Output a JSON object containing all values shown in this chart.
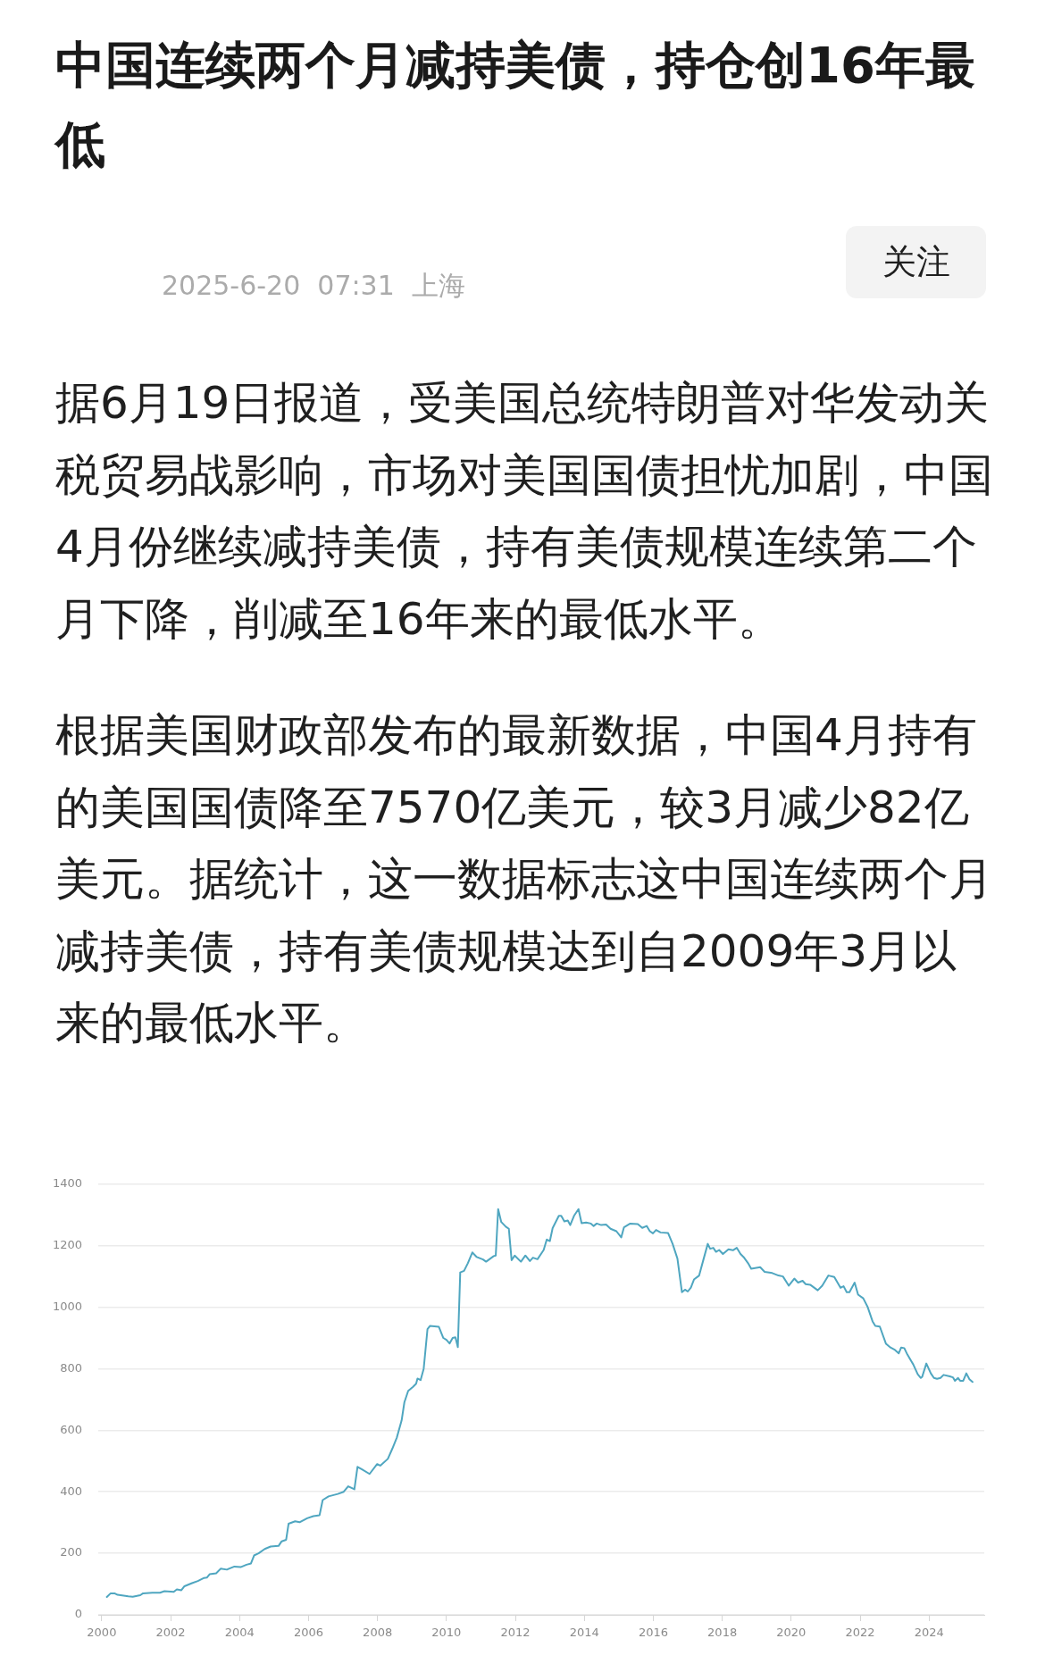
{
  "chart_data": {
    "type": "line",
    "title": "中国连续两个月减持美债，持仓创16年最低",
    "subtitle": "2025-6-20  07:31  上海",
    "annotations": [
      "关注",
      "据6月19日报道，受美国总统特朗普对华发动关税贸易战影响，市场对美国国债担忧加剧，中国4月份继续减持美债，持有美债规模连续第二个月下降，削减至16年来的最低水平。",
      "根据美国财政部发布的最新数据，中国4月持有的美国国债降至7570亿美元，较3月减少82亿美元。据统计，这一数据标志这中国连续两个月减持美债，持有美债规模达到自2009年3月以来的最低水平。"
    ],
    "x": [
      2000.15,
      2000.26,
      2000.37,
      2000.46,
      2000.77,
      2000.9,
      2001.12,
      2001.2,
      2001.47,
      2001.69,
      2001.82,
      2002.09,
      2002.18,
      2002.31,
      2002.4,
      2002.62,
      2002.79,
      2002.97,
      2003.05,
      2003.13,
      2003.32,
      2003.45,
      2003.63,
      2003.85,
      2004.03,
      2004.2,
      2004.33,
      2004.42,
      2004.55,
      2004.73,
      2004.9,
      2005.13,
      2005.22,
      2005.35,
      2005.42,
      2005.61,
      2005.74,
      2005.96,
      2006.14,
      2006.32,
      2006.41,
      2006.58,
      2006.85,
      2007.02,
      2007.15,
      2007.33,
      2007.42,
      2007.55,
      2007.77,
      2007.99,
      2008.08,
      2008.3,
      2008.43,
      2008.56,
      2008.7,
      2008.78,
      2008.89,
      2009.03,
      2009.12,
      2009.16,
      2009.25,
      2009.34,
      2009.45,
      2009.52,
      2009.78,
      2009.91,
      2010.0,
      2010.09,
      2010.18,
      2010.26,
      2010.33,
      2010.4,
      2010.51,
      2010.62,
      2010.75,
      2010.88,
      2011.06,
      2011.15,
      2011.37,
      2011.43,
      2011.5,
      2011.59,
      2011.72,
      2011.81,
      2011.89,
      2011.98,
      2012.16,
      2012.29,
      2012.42,
      2012.51,
      2012.64,
      2012.82,
      2012.91,
      2013.0,
      2013.08,
      2013.26,
      2013.33,
      2013.42,
      2013.52,
      2013.59,
      2013.7,
      2013.83,
      2013.92,
      2014.05,
      2014.19,
      2014.27,
      2014.36,
      2014.49,
      2014.63,
      2014.76,
      2014.93,
      2015.07,
      2015.15,
      2015.33,
      2015.55,
      2015.68,
      2015.81,
      2015.9,
      2015.99,
      2016.08,
      2016.21,
      2016.43,
      2016.56,
      2016.7,
      2016.83,
      2016.92,
      2017.0,
      2017.09,
      2017.18,
      2017.33,
      2017.45,
      2017.58,
      2017.65,
      2017.74,
      2017.82,
      2017.91,
      2018.02,
      2018.18,
      2018.31,
      2018.42,
      2018.53,
      2018.62,
      2018.75,
      2018.84,
      2019.1,
      2019.23,
      2019.45,
      2019.63,
      2019.76,
      2019.93,
      2020.09,
      2020.2,
      2020.33,
      2020.42,
      2020.55,
      2020.77,
      2020.9,
      2021.08,
      2021.25,
      2021.43,
      2021.52,
      2021.61,
      2021.69,
      2021.84,
      2021.94,
      2022.09,
      2022.22,
      2022.36,
      2022.44,
      2022.57,
      2022.75,
      2022.88,
      2023.01,
      2023.12,
      2023.19,
      2023.28,
      2023.37,
      2023.54,
      2023.67,
      2023.76,
      2023.8,
      2023.92,
      2024.05,
      2024.14,
      2024.23,
      2024.33,
      2024.42,
      2024.6,
      2024.69,
      2024.75,
      2024.84,
      2024.9,
      2024.99,
      2025.08,
      2025.17,
      2025.26
    ],
    "series": [
      {
        "color": "#4fa6c0",
        "values": [
          58,
          70,
          70,
          65,
          60,
          59,
          64,
          70,
          72,
          72,
          77,
          75,
          83,
          80,
          93,
          103,
          110,
          120,
          121,
          132,
          135,
          150,
          147,
          157,
          155,
          163,
          167,
          193,
          200,
          214,
          222,
          224,
          239,
          244,
          296,
          304,
          301,
          314,
          321,
          324,
          373,
          385,
          393,
          400,
          418,
          408,
          481,
          473,
          458,
          490,
          485,
          507,
          540,
          576,
          632,
          691,
          728,
          741,
          751,
          768,
          763,
          800,
          929,
          939,
          936,
          900,
          894,
          882,
          900,
          902,
          870,
          1113,
          1118,
          1143,
          1178,
          1163,
          1155,
          1148,
          1166,
          1168,
          1319,
          1277,
          1262,
          1255,
          1153,
          1168,
          1148,
          1168,
          1150,
          1161,
          1156,
          1186,
          1220,
          1215,
          1257,
          1297,
          1297,
          1279,
          1282,
          1267,
          1297,
          1319,
          1273,
          1275,
          1272,
          1264,
          1272,
          1267,
          1269,
          1255,
          1247,
          1227,
          1260,
          1272,
          1270,
          1258,
          1264,
          1247,
          1240,
          1251,
          1243,
          1241,
          1206,
          1158,
          1049,
          1057,
          1051,
          1064,
          1090,
          1103,
          1153,
          1206,
          1190,
          1193,
          1180,
          1186,
          1173,
          1188,
          1185,
          1193,
          1173,
          1163,
          1143,
          1125,
          1130,
          1115,
          1111,
          1103,
          1100,
          1070,
          1093,
          1080,
          1086,
          1075,
          1073,
          1055,
          1070,
          1103,
          1098,
          1063,
          1068,
          1049,
          1049,
          1080,
          1041,
          1029,
          1000,
          954,
          939,
          937,
          881,
          869,
          861,
          850,
          869,
          867,
          846,
          814,
          782,
          770,
          774,
          817,
          785,
          770,
          767,
          770,
          780,
          775,
          772,
          761,
          770,
          761,
          761,
          785,
          766,
          757
        ]
      }
    ],
    "xlim": [
      1999.9,
      2025.6
    ],
    "xticks": [
      2000,
      2002,
      2004,
      2006,
      2008,
      2010,
      2012,
      2014,
      2016,
      2018,
      2020,
      2022,
      2024
    ],
    "ylim": [
      0,
      1400
    ],
    "yticks": [
      0,
      200,
      400,
      600,
      800,
      1000,
      1200,
      1400
    ],
    "grid": "y",
    "legend": false,
    "marker": "none",
    "line_style": "solid"
  }
}
